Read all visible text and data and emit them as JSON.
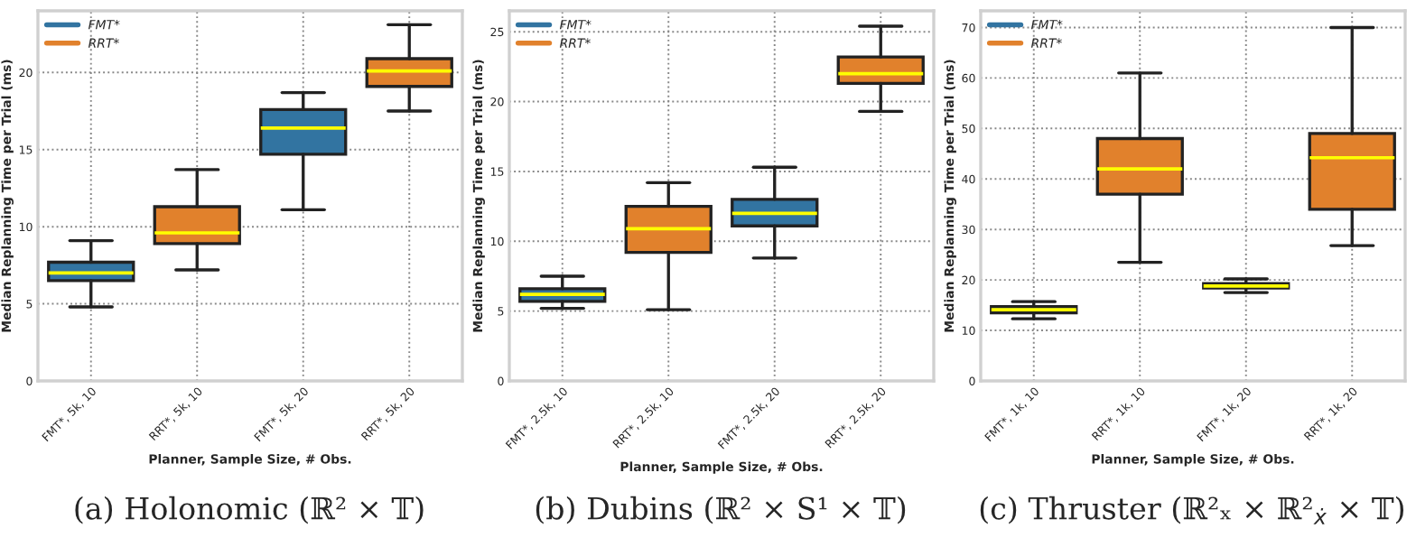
{
  "chart_data": [
    {
      "type": "box",
      "xlabel": "Planner, Sample Size, # Obs.",
      "ylabel": "Median Replanning Time per Trial (ms)",
      "categories": [
        "FMT*, 5k, 10",
        "RRT*, 5k, 10",
        "FMT*, 5k, 20",
        "RRT*, 5k, 20"
      ],
      "ylim": [
        0,
        24
      ],
      "yticks": [
        0,
        5,
        10,
        15,
        20
      ],
      "grid": true,
      "legend": "top left",
      "annotations": [
        "(a) Holonomic (ℝ² × 𝕋)"
      ],
      "series": [
        {
          "name": "FMT*",
          "color": "#3274a1",
          "boxes": [
            {
              "low": 4.8,
              "q1": 6.5,
              "median": 7.0,
              "q3": 7.7,
              "high": 9.1
            },
            null,
            {
              "low": 11.1,
              "q1": 14.7,
              "median": 16.4,
              "q3": 17.6,
              "high": 18.7
            },
            null
          ]
        },
        {
          "name": "RRT*",
          "color": "#e1812c",
          "boxes": [
            null,
            {
              "low": 7.2,
              "q1": 8.9,
              "median": 9.6,
              "q3": 11.3,
              "high": 13.7
            },
            null,
            {
              "low": 17.5,
              "q1": 19.1,
              "median": 20.1,
              "q3": 20.9,
              "high": 23.1
            }
          ]
        }
      ]
    },
    {
      "type": "box",
      "xlabel": "Planner, Sample Size, # Obs.",
      "ylabel": "Median Replanning Time per Trial (ms)",
      "categories": [
        "FMT*, 2.5k, 10",
        "RRT*, 2.5k, 10",
        "FMT*, 2.5k, 20",
        "RRT*, 2.5k, 20"
      ],
      "ylim": [
        0,
        26.5
      ],
      "yticks": [
        0,
        5,
        10,
        15,
        20,
        25
      ],
      "grid": true,
      "legend": "top left",
      "annotations": [
        "(b) Dubins (ℝ² × S¹ × 𝕋)"
      ],
      "series": [
        {
          "name": "FMT*",
          "color": "#3274a1",
          "boxes": [
            {
              "low": 5.2,
              "q1": 5.7,
              "median": 6.2,
              "q3": 6.6,
              "high": 7.5
            },
            null,
            {
              "low": 8.8,
              "q1": 11.1,
              "median": 12.0,
              "q3": 13.0,
              "high": 15.3
            },
            null
          ]
        },
        {
          "name": "RRT*",
          "color": "#e1812c",
          "boxes": [
            null,
            {
              "low": 5.1,
              "q1": 9.2,
              "median": 10.9,
              "q3": 12.5,
              "high": 14.2
            },
            null,
            {
              "low": 19.3,
              "q1": 21.3,
              "median": 22.0,
              "q3": 23.2,
              "high": 25.4
            }
          ]
        }
      ]
    },
    {
      "type": "box",
      "xlabel": "Planner, Sample Size, # Obs.",
      "ylabel": "Median Replanning Time per Trial (ms)",
      "categories": [
        "FMT*, 1k, 10",
        "RRT*, 1k, 10",
        "FMT*, 1k, 20",
        "RRT*, 1k, 20"
      ],
      "ylim": [
        0,
        73.3
      ],
      "yticks": [
        0,
        10,
        20,
        30,
        40,
        50,
        60,
        70
      ],
      "grid": true,
      "legend": "top left",
      "annotations": [
        "(c) Thruster (ℝ²ₓ × ℝ²$_{ẋ}$ × 𝕋)"
      ],
      "series": [
        {
          "name": "FMT*",
          "color": "#3274a1",
          "boxes": [
            {
              "low": 12.3,
              "q1": 13.5,
              "median": 14.1,
              "q3": 14.7,
              "high": 15.7
            },
            null,
            {
              "low": 17.5,
              "q1": 18.4,
              "median": 18.8,
              "q3": 19.3,
              "high": 20.2
            },
            null
          ]
        },
        {
          "name": "RRT*",
          "color": "#e1812c",
          "boxes": [
            null,
            {
              "low": 23.5,
              "q1": 37,
              "median": 42,
              "q3": 48,
              "high": 61
            },
            null,
            {
              "low": 26.8,
              "q1": 34,
              "median": 44.2,
              "q3": 49,
              "high": 70
            }
          ]
        }
      ]
    }
  ]
}
